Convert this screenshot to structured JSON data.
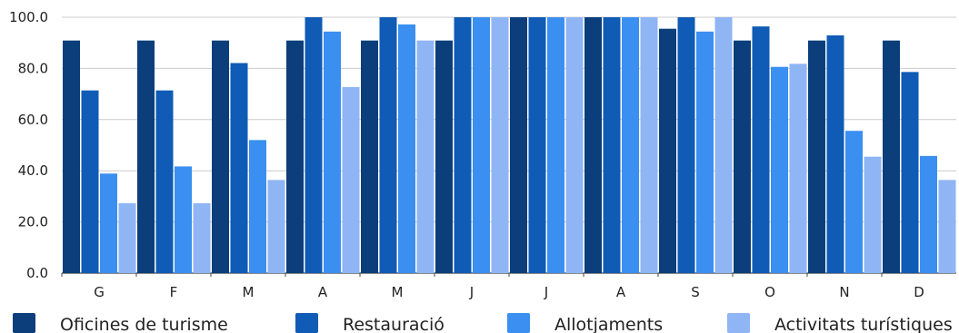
{
  "chart_data": {
    "type": "bar",
    "categories": [
      "G",
      "F",
      "M",
      "A",
      "M",
      "J",
      "J",
      "A",
      "S",
      "O",
      "N",
      "D"
    ],
    "series": [
      {
        "name": "Oficines de turisme",
        "color": "#0b3e7a",
        "values": [
          90.9,
          90.9,
          90.9,
          90.9,
          90.9,
          90.9,
          100,
          100,
          95.5,
          90.9,
          90.9,
          90.9
        ]
      },
      {
        "name": "Restauració",
        "color": "#0f5bb5",
        "values": [
          71.4,
          71.4,
          82.1,
          100,
          100,
          100,
          100,
          100,
          100,
          96.4,
          92.9,
          78.6
        ]
      },
      {
        "name": "Allotjaments",
        "color": "#3a8ff0",
        "values": [
          38.9,
          41.7,
          52.0,
          94.4,
          97.2,
          100,
          100,
          100,
          94.4,
          80.6,
          55.6,
          45.8
        ]
      },
      {
        "name": "Activitats turístiques",
        "color": "#8fb5f5",
        "values": [
          27.3,
          27.3,
          36.4,
          72.7,
          90.9,
          100,
          100,
          100,
          100,
          81.8,
          45.5,
          36.4
        ]
      }
    ],
    "yticks": [
      "0.0",
      "20.0",
      "40.0",
      "60.0",
      "80.0",
      "100.0"
    ],
    "ylim": [
      0,
      100
    ],
    "title": "",
    "xlabel": "",
    "ylabel": "",
    "grid": true,
    "legend_position": "bottom"
  }
}
